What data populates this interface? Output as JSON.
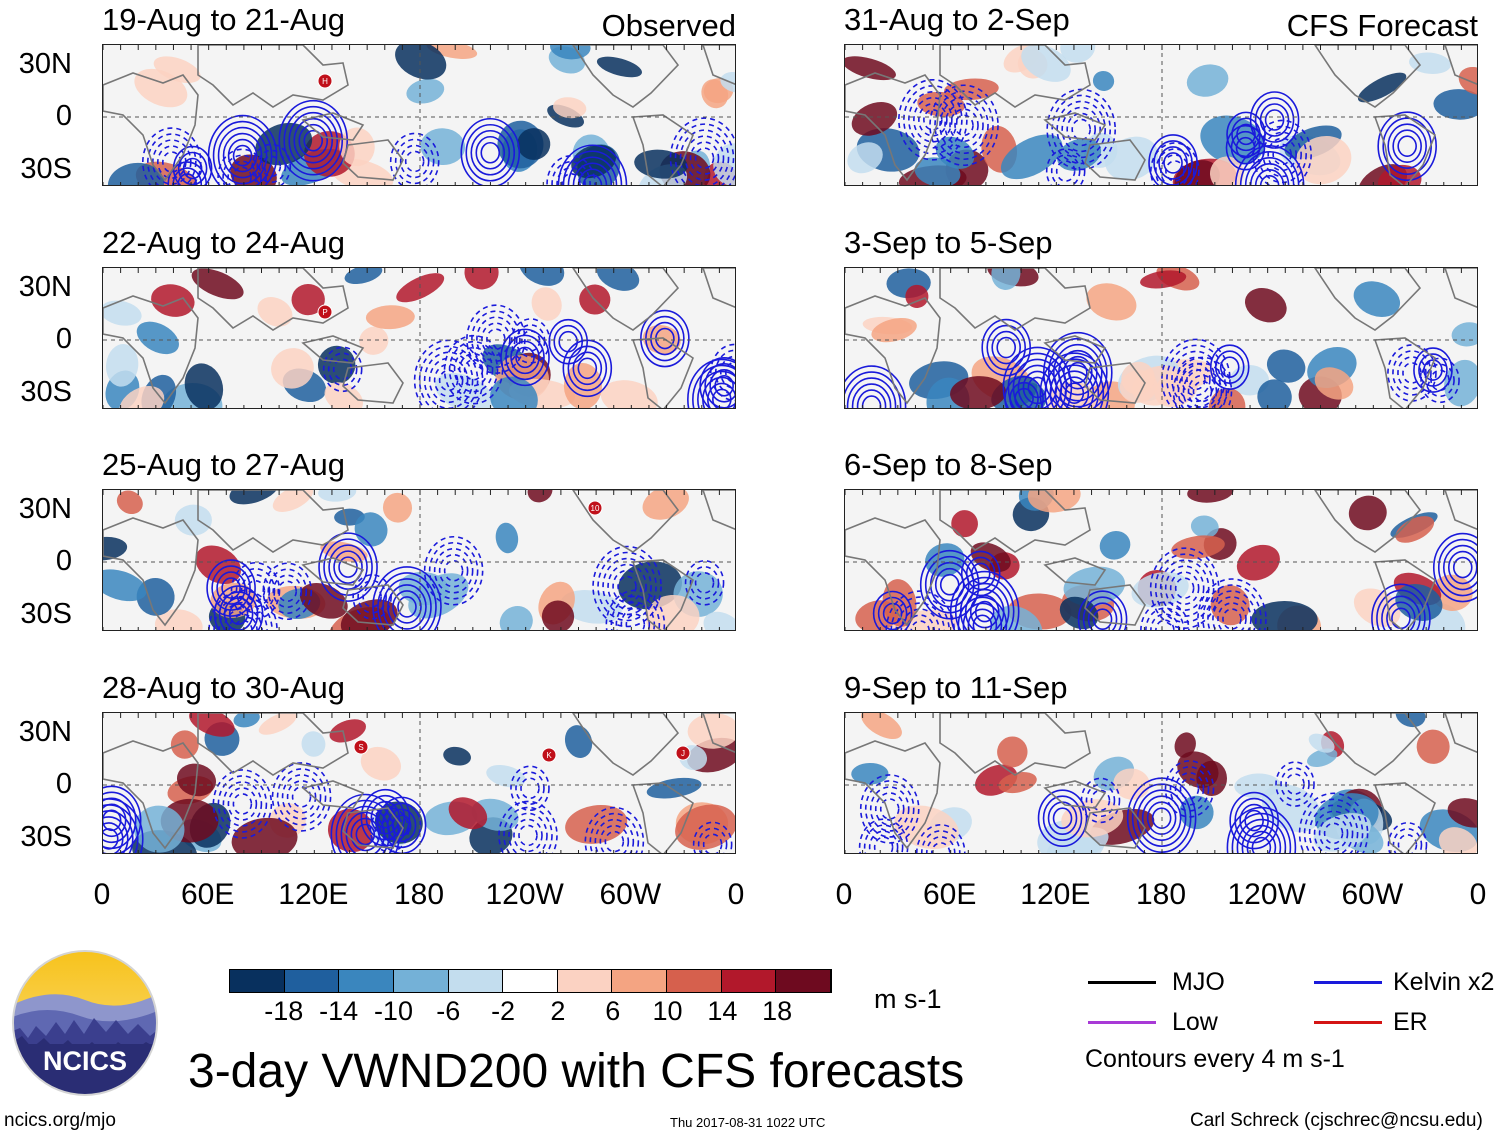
{
  "title": "3-day VWND200 with CFS forecasts",
  "observed_label": "Observed",
  "forecast_label": "CFS Forecast",
  "lat_labels": [
    "30N",
    "0",
    "30S"
  ],
  "lon_labels": [
    "0",
    "60E",
    "120E",
    "180",
    "120W",
    "60W",
    "0"
  ],
  "observed_panels": [
    {
      "period": "19-Aug to 21-Aug",
      "storms": [
        "H"
      ]
    },
    {
      "period": "22-Aug to 24-Aug",
      "storms": [
        "P"
      ]
    },
    {
      "period": "25-Aug to 27-Aug",
      "storms": [
        "10"
      ]
    },
    {
      "period": "28-Aug to 30-Aug",
      "storms": [
        "S",
        "K",
        "J"
      ]
    }
  ],
  "forecast_panels": [
    {
      "period": "31-Aug to 2-Sep"
    },
    {
      "period": "3-Sep to 5-Sep"
    },
    {
      "period": "6-Sep to 8-Sep"
    },
    {
      "period": "9-Sep to 11-Sep"
    }
  ],
  "colorbar": {
    "labels": [
      "-18",
      "-14",
      "-10",
      "-6",
      "-2",
      "2",
      "6",
      "10",
      "14",
      "18"
    ],
    "colors": [
      "#08305e",
      "#1f5f9e",
      "#3a86be",
      "#74b1d7",
      "#c3ddee",
      "#ffffff",
      "#fbd2c2",
      "#f4a482",
      "#d6604d",
      "#b2182b",
      "#6e0a1f"
    ],
    "units": "m s-1"
  },
  "legend": {
    "items": [
      {
        "label": "MJO",
        "color": "#000000"
      },
      {
        "label": "Kelvin x2",
        "color": "#1a1adb"
      },
      {
        "label": "Low",
        "color": "#a83ad6"
      },
      {
        "label": "ER",
        "color": "#d41414"
      }
    ],
    "contour_note": "Contours every 4 m s-1"
  },
  "logo_text": "NCICS",
  "footer": {
    "url": "ncics.org/mjo",
    "timestamp": "Thu 2017-08-31 1022 UTC",
    "author": "Carl Schreck (cjschrec@ncsu.edu)"
  }
}
